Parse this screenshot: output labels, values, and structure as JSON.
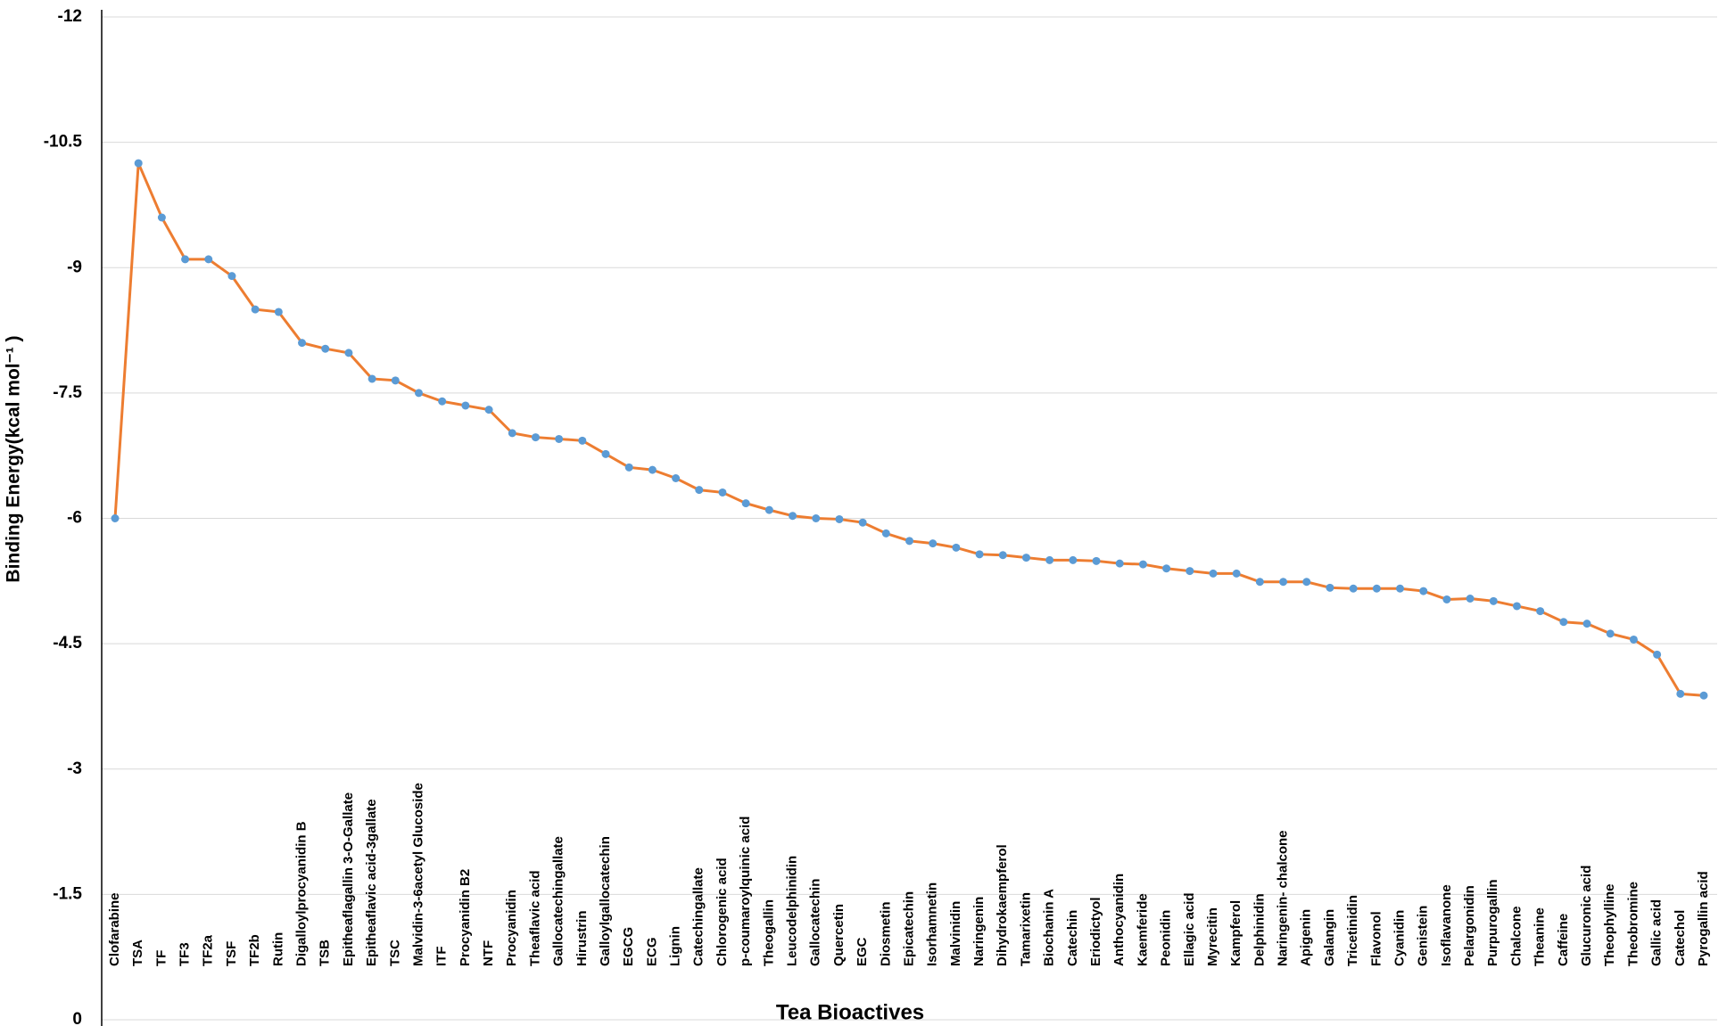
{
  "chart_data": {
    "type": "line",
    "x_label": "Tea Bioactives",
    "y_label": "Binding Energy(kcal mol⁻¹ )",
    "categories": [
      "Clofarabine",
      "TSA",
      "TF",
      "TF3",
      "TF2a",
      "TSF",
      "TF2b",
      "Rutin",
      "Digalloylprocyanidin B",
      "TSB",
      "Epitheaflagallin 3-O-Gallate",
      "Epitheaflavic acid-3gallate",
      "TSC",
      "Malvidin-3-6acetyl Glucoside",
      "ITF",
      "Procyanidin B2",
      "NTF",
      "Procyanidin",
      "Theaflavic acid",
      "Gallocatechingallate",
      "Hirustrin",
      "Galloylgallocatechin",
      "EGCG",
      "ECG",
      "Lignin",
      "Catechingallate",
      "Chlorogenic acid",
      "p-coumaroylquinic acid",
      "Theogallin",
      "Leucodelphinidin",
      "Gallocatechin",
      "Quercetin",
      "EGC",
      "Diosmetin",
      "Epicatechin",
      "Isorhamnetin",
      "Malvinidin",
      "Naringenin",
      "Dihydrokaempferol",
      "Tamarixetin",
      "Biochanin A",
      "Catechin",
      "Eriodictyol",
      "Anthocyanidin",
      "Kaemferide",
      "Peonidin",
      "Ellagic acid",
      "Myrecitin",
      "Kampferol",
      "Delphinidin",
      "Naringenin- chalcone",
      "Apigenin",
      "Galangin",
      "Tricetinidin",
      "Flavonol",
      "Cyanidin",
      "Genistein",
      "Isoflavanone",
      "Pelargonidin",
      "Purpurogallin",
      "Chalcone",
      "Theanine",
      "Caffeine",
      "Glucuronic acid",
      "Theophylline",
      "Theobromine",
      "Gallic acid",
      "Catechol",
      "Pyrogallin acid"
    ],
    "series": [
      {
        "color": "#ed7d31",
        "marker_color": "#5b9bd5",
        "values": [
          -6.0,
          -10.25,
          -9.6,
          -9.1,
          -9.1,
          -8.9,
          -8.5,
          -8.47,
          -8.1,
          -8.03,
          -7.98,
          -7.67,
          -7.65,
          -7.5,
          -7.4,
          -7.35,
          -7.3,
          -7.02,
          -6.97,
          -6.95,
          -6.93,
          -6.77,
          -6.61,
          -6.58,
          -6.48,
          -6.34,
          -6.31,
          -6.18,
          -6.1,
          -6.03,
          -6.0,
          -5.99,
          -5.95,
          -5.82,
          -5.73,
          -5.7,
          -5.65,
          -5.57,
          -5.56,
          -5.53,
          -5.5,
          -5.5,
          -5.49,
          -5.46,
          -5.45,
          -5.4,
          -5.37,
          -5.34,
          -5.34,
          -5.24,
          -5.24,
          -5.24,
          -5.17,
          -5.16,
          -5.16,
          -5.16,
          -5.13,
          -5.03,
          -5.04,
          -5.01,
          -4.95,
          -4.89,
          -4.76,
          -4.74,
          -4.62,
          -4.55,
          -4.37,
          -3.9,
          -3.88
        ]
      }
    ],
    "ylim": [
      0,
      -12
    ],
    "yticks": [
      0,
      -1.5,
      -3,
      -4.5,
      -6,
      -7.5,
      -9,
      -10.5,
      -12
    ],
    "grid": true
  }
}
